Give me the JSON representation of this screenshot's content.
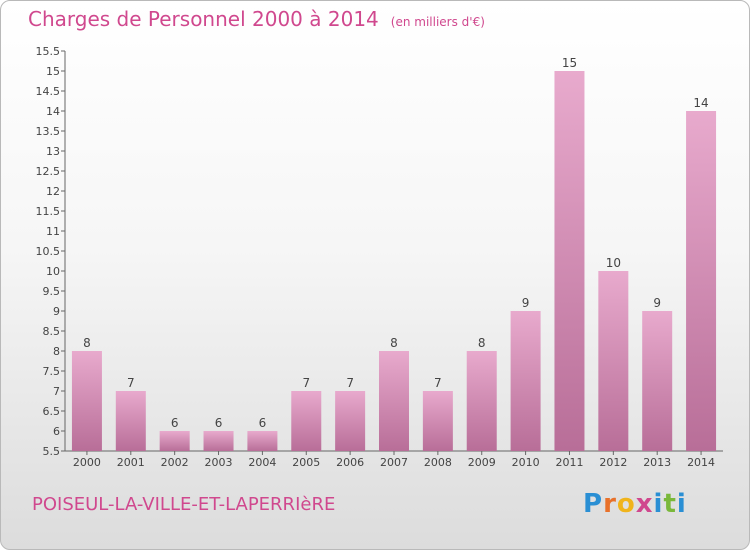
{
  "header": {
    "title": "Charges de Personnel 2000 à 2014",
    "unit": "(en milliers d'€)"
  },
  "footer": {
    "commune": "POISEUL-LA-VILLE-ET-LAPERRIèRE",
    "logo_text": "Proxiti"
  },
  "colors": {
    "accent": "#d0488e",
    "bar_top": "#e8aacd",
    "bar_bottom": "#b86e98"
  },
  "chart_data": {
    "type": "bar",
    "categories": [
      "2000",
      "2001",
      "2002",
      "2003",
      "2004",
      "2005",
      "2006",
      "2007",
      "2008",
      "2009",
      "2010",
      "2011",
      "2012",
      "2013",
      "2014"
    ],
    "values": [
      8,
      7,
      6,
      6,
      6,
      7,
      7,
      8,
      7,
      8,
      9,
      15,
      10,
      9,
      14
    ],
    "ylim": [
      5.5,
      15.5
    ],
    "yticks": [
      "5.5",
      "6",
      "6.5",
      "7",
      "7.5",
      "8",
      "8.5",
      "9",
      "9.5",
      "10",
      "10.5",
      "11",
      "11.5",
      "12",
      "12.5",
      "13",
      "13.5",
      "14",
      "14.5",
      "15",
      "15.5"
    ],
    "grid": false,
    "legend": "none"
  }
}
